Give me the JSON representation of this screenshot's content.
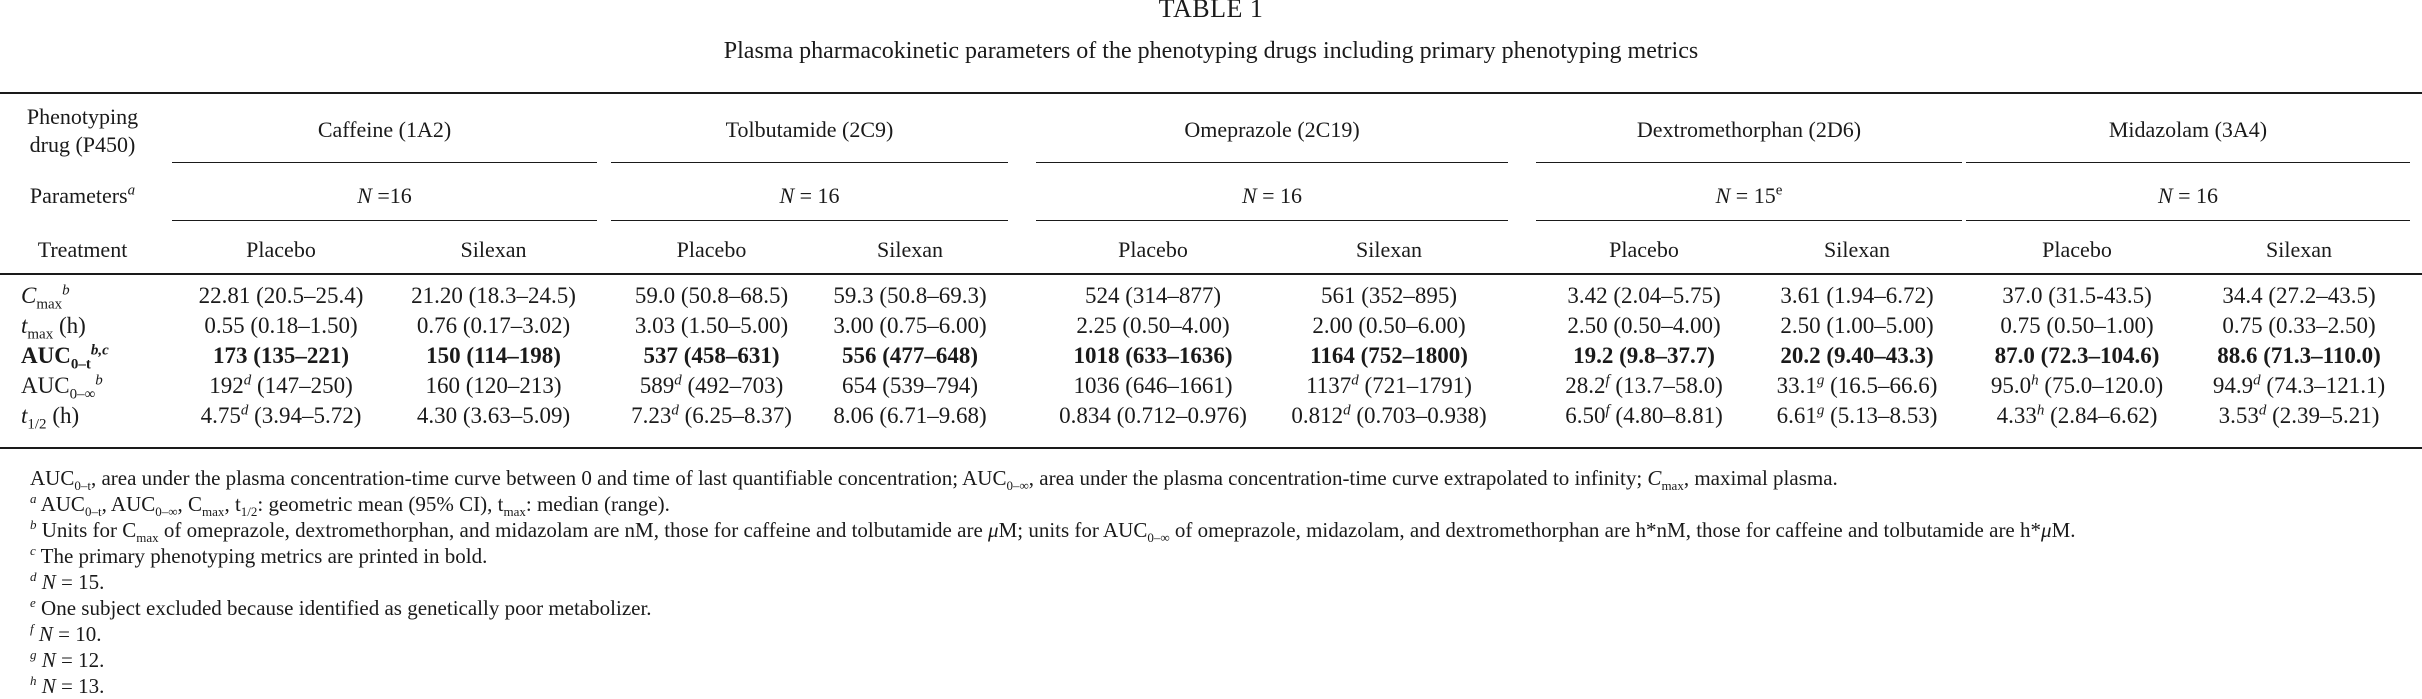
{
  "caption": {
    "number": "TABLE 1",
    "title": "Plasma pharmacokinetic parameters of the phenotyping drugs including primary phenotyping metrics"
  },
  "header": {
    "row1_label_line1": "Phenotyping",
    "row1_label_line2": "drug (P450)",
    "drugs": [
      "Caffeine (1A2)",
      "Tolbutamide (2C9)",
      "Omeprazole (2C19)",
      "Dextromethorphan (2D6)",
      "Midazolam (3A4)"
    ],
    "row2_label": "Parameters",
    "row2_label_sup": "a",
    "n_values": [
      {
        "prefix": "N",
        "text": " =16",
        "sup": ""
      },
      {
        "prefix": "N",
        "text": " = 16",
        "sup": ""
      },
      {
        "prefix": "N",
        "text": " = 16",
        "sup": ""
      },
      {
        "prefix": "N",
        "text": " = 15",
        "sup": "e"
      },
      {
        "prefix": "N",
        "text": " = 16",
        "sup": ""
      }
    ],
    "row3_label": "Treatment",
    "treatments": [
      "Placebo",
      "Silexan",
      "Placebo",
      "Silexan",
      "Placebo",
      "Silexan",
      "Placebo",
      "Silexan",
      "Placebo",
      "Silexan"
    ]
  },
  "rows": [
    {
      "param": {
        "main": "C",
        "sub": "max",
        "sup": "b",
        "italic": true
      },
      "bold": false,
      "cells": [
        {
          "v": "22.81",
          "s": "",
          "r": " (20.5–25.4)"
        },
        {
          "v": "21.20",
          "s": "",
          "r": " (18.3–24.5)"
        },
        {
          "v": "59.0",
          "s": "",
          "r": " (50.8–68.5)"
        },
        {
          "v": "59.3",
          "s": "",
          "r": " (50.8–69.3)"
        },
        {
          "v": "524",
          "s": "",
          "r": " (314–877)"
        },
        {
          "v": "561",
          "s": "",
          "r": " (352–895)"
        },
        {
          "v": "3.42",
          "s": "",
          "r": " (2.04–5.75)"
        },
        {
          "v": "3.61",
          "s": "",
          "r": " (1.94–6.72)"
        },
        {
          "v": "37.0",
          "s": "",
          "r": " (31.5-43.5)"
        },
        {
          "v": "34.4",
          "s": "",
          "r": " (27.2–43.5)"
        }
      ]
    },
    {
      "param": {
        "main": "t",
        "sub": "max",
        "sup": "",
        "after": " (h)",
        "italic": true
      },
      "bold": false,
      "cells": [
        {
          "v": "0.55",
          "s": "",
          "r": " (0.18–1.50)"
        },
        {
          "v": "0.76",
          "s": "",
          "r": " (0.17–3.02)"
        },
        {
          "v": "3.03",
          "s": "",
          "r": " (1.50–5.00)"
        },
        {
          "v": "3.00",
          "s": "",
          "r": " (0.75–6.00)"
        },
        {
          "v": "2.25",
          "s": "",
          "r": " (0.50–4.00)"
        },
        {
          "v": "2.00",
          "s": "",
          "r": " (0.50–6.00)"
        },
        {
          "v": "2.50",
          "s": "",
          "r": " (0.50–4.00)"
        },
        {
          "v": "2.50",
          "s": "",
          "r": " (1.00–5.00)"
        },
        {
          "v": "0.75",
          "s": "",
          "r": " (0.50–1.00)"
        },
        {
          "v": "0.75",
          "s": "",
          "r": " (0.33–2.50)"
        }
      ]
    },
    {
      "param": {
        "main": "AUC",
        "sub": "0–t",
        "sup": "b,c",
        "italic": false
      },
      "bold": true,
      "cells": [
        {
          "v": "173",
          "s": "",
          "r": " (135–221)"
        },
        {
          "v": "150",
          "s": "",
          "r": " (114–198)"
        },
        {
          "v": "537",
          "s": "",
          "r": " (458–631)"
        },
        {
          "v": "556",
          "s": "",
          "r": " (477–648)"
        },
        {
          "v": "1018",
          "s": "",
          "r": " (633–1636)"
        },
        {
          "v": "1164",
          "s": "",
          "r": " (752–1800)"
        },
        {
          "v": "19.2",
          "s": "",
          "r": " (9.8–37.7)"
        },
        {
          "v": "20.2",
          "s": "",
          "r": " (9.40–43.3)"
        },
        {
          "v": "87.0",
          "s": "",
          "r": " (72.3–104.6)"
        },
        {
          "v": "88.6",
          "s": "",
          "r": " (71.3–110.0)"
        }
      ]
    },
    {
      "param": {
        "main": "AUC",
        "sub": "0–∞",
        "sup": "b",
        "italic": false
      },
      "bold": false,
      "cells": [
        {
          "v": "192",
          "s": "d",
          "r": " (147–250)"
        },
        {
          "v": "160",
          "s": "",
          "r": " (120–213)"
        },
        {
          "v": "589",
          "s": "d",
          "r": " (492–703)"
        },
        {
          "v": "654",
          "s": "",
          "r": " (539–794)"
        },
        {
          "v": "1036",
          "s": "",
          "r": " (646–1661)"
        },
        {
          "v": "1137",
          "s": "d",
          "r": " (721–1791)"
        },
        {
          "v": "28.2",
          "s": "f",
          "r": " (13.7–58.0)"
        },
        {
          "v": "33.1",
          "s": "g",
          "r": " (16.5–66.6)"
        },
        {
          "v": "95.0",
          "s": "h",
          "r": " (75.0–120.0)"
        },
        {
          "v": "94.9",
          "s": "d",
          "r": " (74.3–121.1)"
        }
      ]
    },
    {
      "param": {
        "main": "t",
        "sub": "1/2",
        "sup": "",
        "after": " (h)",
        "italic": true
      },
      "bold": false,
      "cells": [
        {
          "v": "4.75",
          "s": "d",
          "r": " (3.94–5.72)"
        },
        {
          "v": "4.30",
          "s": "",
          "r": " (3.63–5.09)"
        },
        {
          "v": "7.23",
          "s": "d",
          "r": " (6.25–8.37)"
        },
        {
          "v": "8.06",
          "s": "",
          "r": " (6.71–9.68)"
        },
        {
          "v": "0.834",
          "s": "",
          "r": " (0.712–0.976)"
        },
        {
          "v": "0.812",
          "s": "d",
          "r": " (0.703–0.938)"
        },
        {
          "v": "6.50",
          "s": "f",
          "r": " (4.80–8.81)"
        },
        {
          "v": "6.61",
          "s": "g",
          "r": " (5.13–8.53)"
        },
        {
          "v": "4.33",
          "s": "h",
          "r": " (2.84–6.62)"
        },
        {
          "v": "3.53",
          "s": "d",
          "r": " (2.39–5.21)"
        }
      ]
    }
  ],
  "footnotes": {
    "abbrev": {
      "p1": "AUC",
      "p1_sub": "0–t",
      "p2": ", area under the plasma concentration-time curve between 0 and time of last quantifiable concentration; AUC",
      "p2_sub": "0–∞",
      "p3": ", area under the plasma concentration-time curve extrapolated to infinity; ",
      "p4": "C",
      "p4_sub": "max",
      "p5": ", maximal plasma."
    },
    "a": {
      "mark": "a",
      "t1": " AUC",
      "t1_sub": "0–t",
      "t2": ", AUC",
      "t2_sub": "0–∞",
      "t3": ", C",
      "t3_sub": "max",
      "t4": ", t",
      "t4_sub": "1/2",
      "t5": ": geometric mean (95% CI), t",
      "t5_sub": "max",
      "t6": ": median (range)."
    },
    "b": {
      "mark": "b",
      "t1": " Units for C",
      "t1_sub": "max",
      "t2": " of omeprazole, dextromethorphan, and midazolam are nM, those for caffeine and tolbutamide are ",
      "t2_mu": "μ",
      "t3": "M; units for AUC",
      "t3_sub": "0–∞",
      "t4": " of omeprazole, midazolam, and dextromethorphan are h*nM, those for caffeine and tolbutamide are h*",
      "t4_mu": "μ",
      "t5": "M."
    },
    "c": {
      "mark": "c",
      "text": " The primary phenotyping metrics are printed in bold."
    },
    "d": {
      "mark": "d",
      "n": "N",
      "text": " = 15."
    },
    "e": {
      "mark": "e",
      "text": " One subject excluded because identified as genetically poor metabolizer."
    },
    "f": {
      "mark": "f",
      "n": "N",
      "text": " = 10."
    },
    "g": {
      "mark": "g",
      "n": "N",
      "text": " = 12."
    },
    "h": {
      "mark": "h",
      "n": "N",
      "text": " = 13."
    }
  }
}
